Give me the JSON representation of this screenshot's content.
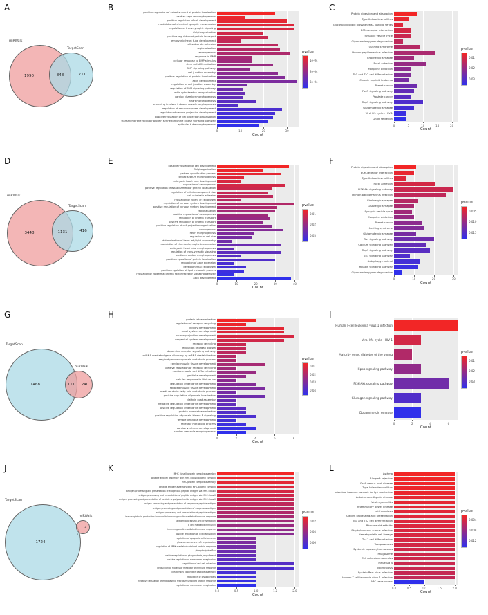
{
  "panels": {
    "A": "A",
    "B": "B",
    "C": "C",
    "D": "D",
    "E": "E",
    "F": "F",
    "G": "G",
    "H": "H",
    "I": "I",
    "J": "J",
    "K": "K",
    "L": "L"
  },
  "colors": {
    "gradient_high_p_red": "#f22626",
    "gradient_low_p_blue": "#3030eb",
    "venn_pink": "#ef9e9e",
    "venn_blue": "#abd9e6",
    "plot_background": "#ebebeb"
  },
  "chart_data": {
    "venn_diagrams": {
      "A": {
        "left_label": "miRWalk",
        "right_label": "TargetScan",
        "left_value": "1990",
        "overlap_value": "848",
        "right_value": "711",
        "left_color": "#ef9e9e",
        "right_color": "#abd9e6"
      },
      "D": {
        "left_label": "miRWalk",
        "right_label": "TargetScan",
        "left_value": "3448",
        "overlap_value": "1131",
        "right_value": "416",
        "left_color": "#ef9e9e",
        "right_color": "#abd9e6"
      },
      "G": {
        "left_label": "TargetScan",
        "right_label": "miRWalk",
        "left_value": "1468",
        "overlap_value": "111",
        "right_value": "240",
        "left_color": "#abd9e6",
        "right_color": "#ef9e9e"
      },
      "J": {
        "left_label": "TargetScan",
        "right_label": "miRWalk",
        "left_value": "1724",
        "overlap_value": "17",
        "right_value": "2",
        "left_color": "#abd9e6",
        "right_color": "#ef9e9e"
      }
    },
    "bar_charts": {
      "B": {
        "type": "bar",
        "legend_title": "pvalue",
        "legend_ticks": [
          "1e-04",
          "2e-04",
          "3e-04"
        ],
        "xlabel": "Count",
        "xmax": 35,
        "xtick_vals": [
          0,
          10,
          20,
          30
        ],
        "xtick_labels": [
          "0",
          "10",
          "20",
          "30"
        ],
        "terms": [
          "positive regulation of establishment of protein localization",
          "cardiac septum morphogenesis",
          "positive regulation of cell development",
          "modulation of chemical synaptic transmission",
          "regulation of trans-synaptic signaling",
          "Golgi organization",
          "positive regulation of protein transport",
          "embryonic heart tube development",
          "cell-substrate adhesion",
          "regionalization",
          "axonogenesis",
          "response to BMP",
          "cellular response to BMP stimulus",
          "stem cell differentiation",
          "BMP signaling pathway",
          "cell junction assembly",
          "positive regulation of protein localization",
          "axon development",
          "regulation of cell junction assembly",
          "regulation of BMP signaling pathway",
          "actin cytoskeleton reorganization",
          "cardiac chamber morphogenesis",
          "heart morphogenesis",
          "branching involved in blood vessel morphogenesis",
          "regulation of nervous system development",
          "regulation of neuron projection development",
          "positive regulation of cell projection organization",
          "transmembrane receptor protein serine/threonine kinase signaling pathway",
          "epithelial tube morphogenesis"
        ],
        "values": [
          25,
          12,
          30,
          33,
          33,
          20,
          22,
          10,
          26,
          27,
          31,
          15,
          15,
          24,
          14,
          26,
          29,
          34,
          13,
          11,
          12,
          11,
          17,
          9,
          28,
          25,
          24,
          22,
          18
        ]
      },
      "C": {
        "type": "bar",
        "legend_title": "pvalue",
        "legend_ticks": [
          "0.01",
          "0.02",
          "0.03"
        ],
        "xlabel": "Count",
        "xmax": 22,
        "xtick_vals": [
          0,
          5,
          10,
          15,
          20
        ],
        "xtick_labels": [
          "0",
          "5",
          "10",
          "15",
          "20"
        ],
        "terms": [
          "Protein digestion and absorption",
          "Type II diabetes mellitus",
          "Glycosphingolipid biosynthesis - ganglio series",
          "ECM-receptor interaction",
          "Synaptic vesicle cycle",
          "Glycosaminoglycan degradation",
          "Cushing syndrome",
          "Human papillomavirus infection",
          "Cholinergic synapse",
          "Focal adhesion",
          "Morphine addiction",
          "Th1 and Th2 cell differentiation",
          "Chronic myeloid leukemia",
          "Breast cancer",
          "FoxO signaling pathway",
          "Prostate cancer",
          "Rap1 signaling pathway",
          "Glutamatergic synapse",
          "Viral life cycle - HIV-1",
          "GnRH secretion"
        ],
        "values": [
          8,
          5,
          3,
          6,
          6,
          3,
          9,
          14,
          7,
          11,
          6,
          6,
          5,
          8,
          7,
          6,
          10,
          7,
          4,
          4
        ]
      },
      "E": {
        "type": "bar",
        "legend_title": "pvalue",
        "legend_ticks": [
          "0.01",
          "0.02",
          "0.03"
        ],
        "xlabel": "Count",
        "xmax": 42,
        "xtick_vals": [
          0,
          10,
          20,
          30,
          40
        ],
        "xtick_labels": [
          "0",
          "10",
          "20",
          "30",
          "40"
        ],
        "terms": [
          "positive regulation of cell development",
          "Golgi organization",
          "pattern specification process",
          "cardiac septum morphogenesis",
          "embryonic heart tube development",
          "regulation of neurogenesis",
          "positive regulation of establishment of protein localization",
          "regulation of cellular component size",
          "cell-substrate adhesion",
          "regulation of extent of cell growth",
          "regulation of nervous system development",
          "positive regulation of nervous system development",
          "regionalization",
          "positive regulation of neurogenesis",
          "regulation of protein transport",
          "positive regulation of protein transport",
          "positive regulation of cell projection organization",
          "axonogenesis",
          "heart morphogenesis",
          "regulation of cell size",
          "determination of heart left/right asymmetry",
          "modulation of chemical synaptic transmission",
          "embryonic heart tube morphogenesis",
          "regulation of trans-synaptic signaling",
          "cardiac chamber morphogenesis",
          "positive regulation of protein localization",
          "regulation of axon extension",
          "developmental cell growth",
          "positive regulation of lipid metabolic process",
          "regulation of epidermal growth factor receptor signaling pathway",
          "axon development"
        ],
        "values": [
          37,
          24,
          33,
          14,
          12,
          35,
          28,
          26,
          29,
          12,
          40,
          31,
          30,
          26,
          27,
          24,
          28,
          34,
          19,
          18,
          8,
          33,
          9,
          33,
          12,
          30,
          9,
          15,
          14,
          9,
          38
        ]
      },
      "F": {
        "type": "bar",
        "legend_title": "pvalue",
        "legend_ticks": [
          "0.005",
          "0.010",
          "0.015"
        ],
        "xlabel": "Count",
        "xmax": 32,
        "xtick_vals": [
          0,
          10,
          20,
          30
        ],
        "xtick_labels": [
          "0",
          "10",
          "20",
          "30"
        ],
        "terms": [
          "Protein digestion and absorption",
          "ECM-receptor interaction",
          "Type II diabetes mellitus",
          "Focal adhesion",
          "PI3K-Akt signaling pathway",
          "Human papillomavirus infection",
          "Cholinergic synapse",
          "GABAergic synapse",
          "Synaptic vesicle cycle",
          "Morphine addiction",
          "Breast cancer",
          "Cushing syndrome",
          "Glutamatergic synapse",
          "Ras signaling pathway",
          "Calcium signaling pathway",
          "Rap1 signaling pathway",
          "p53 signaling pathway",
          "Autophagy - animal",
          "Relaxin signaling pathway",
          "Glycosaminoglycan degradation"
        ],
        "values": [
          11,
          10,
          6,
          21,
          30,
          26,
          12,
          10,
          9,
          10,
          14,
          15,
          11,
          20,
          16,
          18,
          8,
          13,
          12,
          4
        ]
      },
      "H": {
        "type": "bar",
        "legend_title": "pvalue",
        "legend_ticks": [
          "0.01",
          "0.02",
          "0.03",
          "0.04"
        ],
        "xlabel": "Count",
        "xmax": 8.5,
        "xtick_vals": [
          0,
          2,
          4,
          6,
          8
        ],
        "xtick_labels": [
          "0",
          "2",
          "4",
          "6",
          "8"
        ],
        "terms": [
          "protein tetramerization",
          "regulation of receptor recycling",
          "kidney development",
          "renal system development",
          "neuron projection development",
          "urogenital system development",
          "receptor recycling",
          "regulation of organ growth",
          "dopamine receptor signaling pathway",
          "miRNA-mediated gene silencing by mRNA destabilization",
          "amyloid precursor protein metabolic process",
          "cardiac muscle tissue development",
          "positive regulation of receptor recycling",
          "cardiac muscle cell differentiation",
          "genitalia development",
          "cellular response to lithium ion",
          "regulation of dendrite development",
          "striated muscle tissue development",
          "medium-chain fatty acid metabolic process",
          "positive regulation of protein localization",
          "clathrin coat assembly",
          "negative regulation of dendrite development",
          "positive regulation of dendrite development",
          "protein homotetramerization",
          "positive regulation of protein kinase B signaling",
          "female genitalia development",
          "receptor metabolic process",
          "cardiac ventricle development",
          "cardiac ventricle morphogenesis"
        ],
        "values": [
          4,
          3,
          7,
          7,
          8,
          7,
          3,
          3,
          3,
          2,
          2,
          5,
          2,
          4,
          3,
          2,
          4,
          5,
          2,
          5,
          2,
          2,
          3,
          3,
          4,
          2,
          3,
          4,
          3
        ]
      },
      "I": {
        "type": "bar",
        "legend_title": "pvalue",
        "legend_ticks": [
          "0.01",
          "0.02",
          "0.03"
        ],
        "xlabel": "Count",
        "xmax": 7,
        "xtick_vals": [
          0,
          2,
          4,
          6
        ],
        "xtick_labels": [
          "0",
          "2",
          "4",
          "6"
        ],
        "terms": [
          "Human T-cell leukemia virus 1 infection",
          "Viral life cycle - HIV-1",
          "Maturity onset diabetes of the young",
          "Hippo signaling pathway",
          "PI3K-Akt signaling pathway",
          "Glucagon signaling pathway",
          "Dopaminergic synapse"
        ],
        "values": [
          7,
          3,
          2,
          3,
          6,
          3,
          3
        ]
      },
      "K": {
        "type": "bar",
        "legend_title": "pvalue",
        "legend_ticks": [
          "0.02",
          "0.04",
          "0.06"
        ],
        "xlabel": "Count",
        "xmax": 2.1,
        "xtick_vals": [
          0,
          0.5,
          1,
          1.5,
          2
        ],
        "xtick_labels": [
          "0.0",
          "0.5",
          "1.0",
          "1.5",
          "2.0"
        ],
        "terms": [
          "MHC class II protein complex assembly",
          "peptide antigen assembly with MHC class II protein complex",
          "MHC protein complex assembly",
          "peptide antigen assembly with MHC protein complex",
          "antigen processing and presentation of exogenous peptide antigen via MHC class II",
          "antigen processing and presentation of peptide antigen via MHC class II",
          "antigen processing and presentation of peptide or polysaccharide antigen via MHC class II",
          "antigen processing and presentation of exogenous peptide antigen",
          "antigen processing and presentation of exogenous antigen",
          "antigen processing and presentation of peptide antigen",
          "immunoglobulin production involved in immunoglobulin-mediated immune response",
          "antigen processing and presentation",
          "B cell mediated immunity",
          "immunoglobulin-mediated immune response",
          "positive regulation of T cell activation",
          "regulation of apoptotic cell clearance",
          "plasma membrane raft organization",
          "regulation of PERK-mediated unfolded protein response",
          "phospholipid efflux",
          "positive regulation of phagocytosis, engulfment",
          "positive regulation of membrane invagination",
          "regulation of cell-cell adhesion",
          "production of molecular mediator of immune response",
          "high-density lipoprotein particle assembly",
          "regulation of phagocytosis",
          "negative regulation of endoplasmic reticulum unfolded protein response",
          "regulation of membrane invagination"
        ],
        "values": [
          2,
          2,
          2,
          2,
          2,
          2,
          2,
          2,
          2,
          2,
          2,
          2,
          2,
          2,
          2,
          1,
          1,
          1,
          1,
          1,
          1,
          2,
          2,
          1,
          1,
          1,
          1
        ]
      },
      "L": {
        "type": "bar",
        "legend_title": "pvalue",
        "legend_ticks": [
          "0.004",
          "0.008",
          "0.012"
        ],
        "xlabel": "Count",
        "xmax": 2.1,
        "xtick_vals": [
          0,
          0.5,
          1,
          1.5,
          2
        ],
        "xtick_labels": [
          "0.0",
          "0.5",
          "1.0",
          "1.5",
          "2.0"
        ],
        "terms": [
          "Asthma",
          "Allograft rejection",
          "Graft-versus-host disease",
          "Type I diabetes mellitus",
          "Intestinal immune network for IgA production",
          "Autoimmune thyroid disease",
          "Viral myocarditis",
          "Inflammatory bowel disease",
          "Leishmaniasis",
          "Antigen processing and presentation",
          "Th1 and Th2 cell differentiation",
          "Rheumatoid arthritis",
          "Staphylococcus aureus infection",
          "Hematopoietic cell lineage",
          "Th17 cell differentiation",
          "Toxoplasmosis",
          "Systemic lupus erythematosus",
          "Phagosome",
          "Cell adhesion molecules",
          "Influenza A",
          "Tuberculosis",
          "Epstein-Barr virus infection",
          "Human T-cell leukemia virus 1 infection",
          "ABC transporters"
        ],
        "values": [
          2,
          2,
          2,
          2,
          2,
          2,
          2,
          2,
          2,
          2,
          2,
          2,
          2,
          2,
          2,
          2,
          2,
          2,
          2,
          2,
          2,
          2,
          2,
          1
        ],
        "t": [
          0,
          0.01,
          0.02,
          0.03,
          0.04,
          0.06,
          0.07,
          0.08,
          0.09,
          0.1,
          0.11,
          0.12,
          0.13,
          0.14,
          0.15,
          0.17,
          0.18,
          0.19,
          0.2,
          0.21,
          0.22,
          0.23,
          0.25,
          1
        ]
      }
    }
  }
}
